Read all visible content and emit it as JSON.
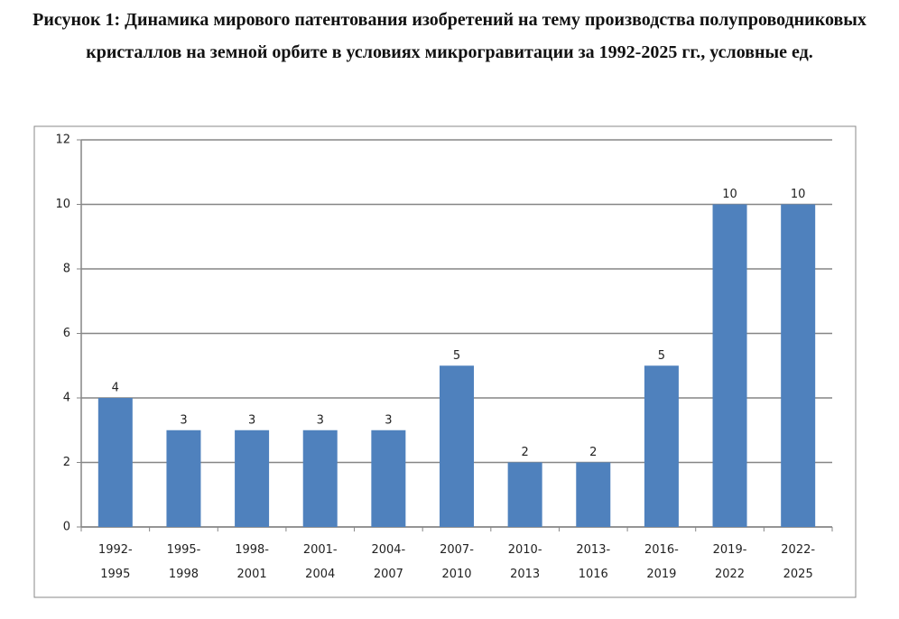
{
  "chart_data": {
    "type": "bar",
    "title": "Рисунок 1: Динамика мирового патентования изобретений на тему производства полупроводниковых кристаллов на земной орбите в условиях микрогравитации за 1992-2025 гг., условные ед.",
    "categories": [
      "1992-1995",
      "1995-1998",
      "1998-2001",
      "2001-2004",
      "2004-2007",
      "2007-2010",
      "2010-2013",
      "2013-1016",
      "2016-2019",
      "2019-2022",
      "2022-2025"
    ],
    "values": [
      4,
      3,
      3,
      3,
      3,
      5,
      2,
      2,
      5,
      10,
      10
    ],
    "color": "#4f81bd",
    "ylim": [
      0,
      12
    ],
    "yticks": [
      0,
      2,
      4,
      6,
      8,
      10,
      12
    ],
    "grid": true
  }
}
